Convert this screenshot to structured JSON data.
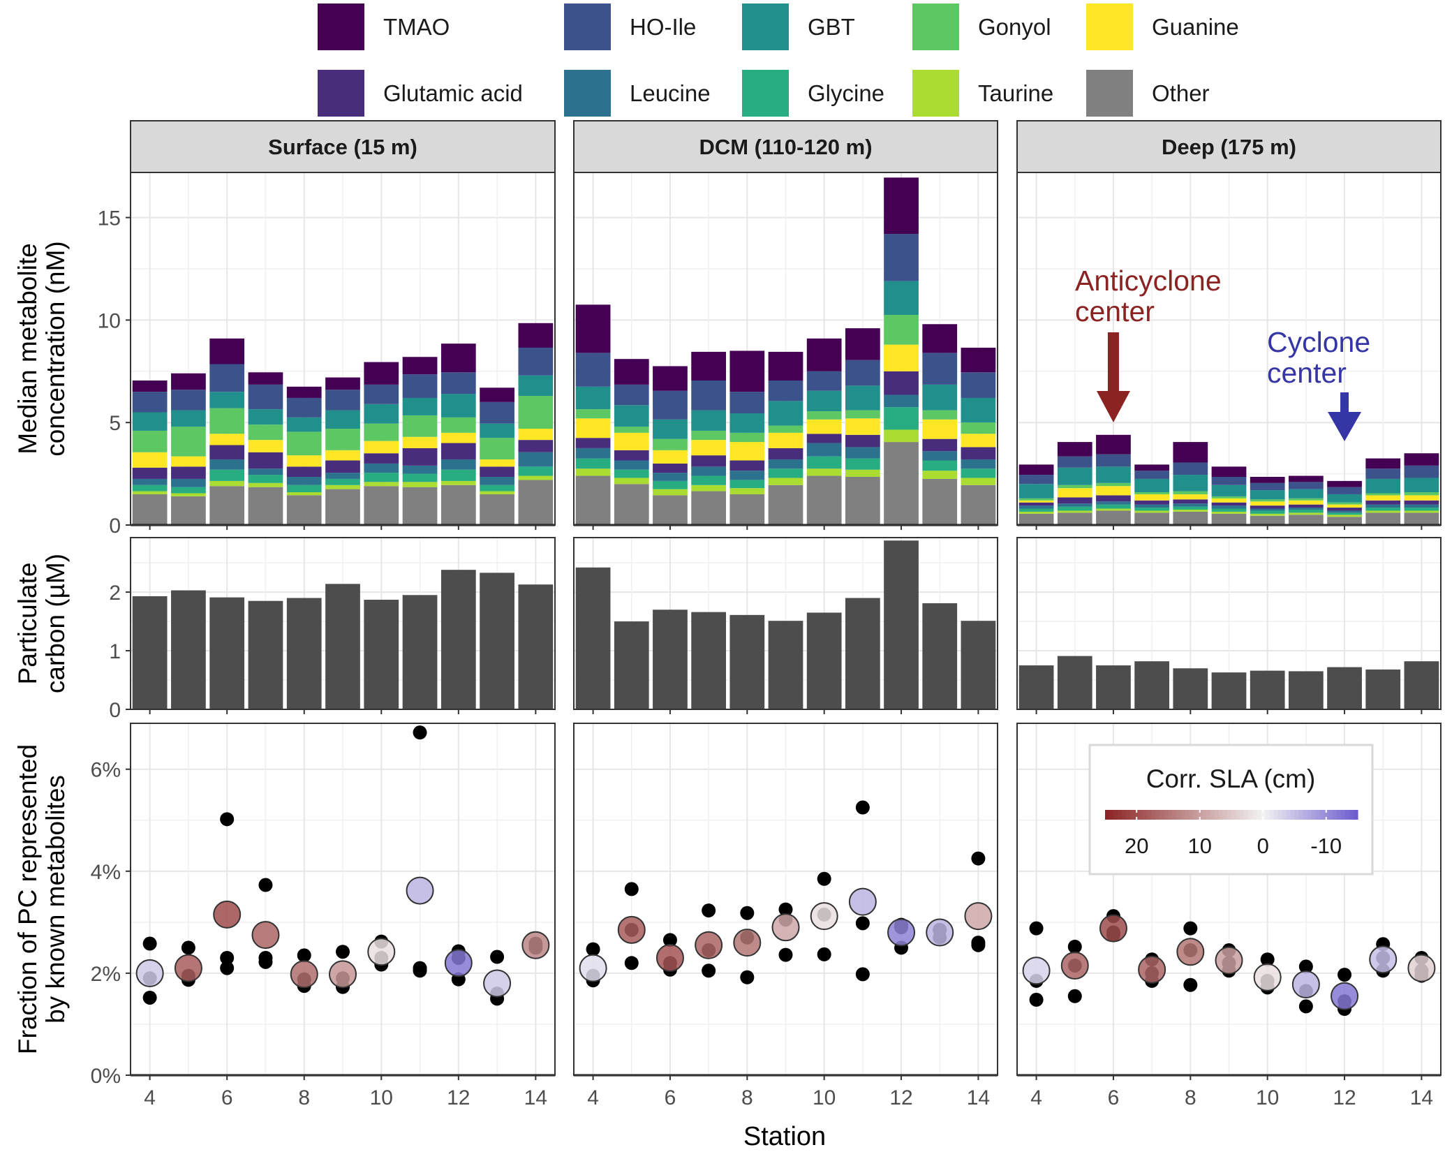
{
  "chart_data": {
    "type": "bar",
    "stations": [
      4,
      5,
      6,
      7,
      8,
      9,
      10,
      11,
      12,
      13,
      14
    ],
    "legend": {
      "position": "top",
      "items": [
        {
          "name": "TMAO",
          "color": "#440154"
        },
        {
          "name": "HO-Ile",
          "color": "#3B528B"
        },
        {
          "name": "GBT",
          "color": "#21908C"
        },
        {
          "name": "Gonyol",
          "color": "#5DC863"
        },
        {
          "name": "Guanine",
          "color": "#FDE725"
        },
        {
          "name": "Glutamic acid",
          "color": "#472D7B"
        },
        {
          "name": "Leucine",
          "color": "#2C728E"
        },
        {
          "name": "Glycine",
          "color": "#27AD81"
        },
        {
          "name": "Taurine",
          "color": "#AADC32"
        },
        {
          "name": "Other",
          "color": "#808080"
        }
      ]
    },
    "facets": [
      {
        "label": "Surface  (15 m)"
      },
      {
        "label": "DCM  (110-120 m)"
      },
      {
        "label": "Deep  (175 m)"
      }
    ],
    "stack_order": [
      "Other",
      "Taurine",
      "Glycine",
      "Leucine",
      "Glutamic acid",
      "Guanine",
      "Gonyol",
      "GBT",
      "HO-Ile",
      "TMAO"
    ],
    "panel_metabolites": {
      "ylabel": [
        "Median metabolite",
        "concentration (nM)"
      ],
      "ylim": [
        0,
        17.2
      ],
      "yticks": [
        0,
        5,
        10,
        15
      ],
      "series": {
        "Surface": {
          "Other": [
            1.5,
            1.4,
            1.9,
            1.85,
            1.45,
            1.75,
            1.9,
            1.85,
            1.95,
            1.5,
            2.2
          ],
          "Taurine": [
            0.15,
            0.15,
            0.25,
            0.2,
            0.15,
            0.2,
            0.2,
            0.25,
            0.2,
            0.15,
            0.2
          ],
          "Glycine": [
            0.3,
            0.3,
            0.55,
            0.4,
            0.35,
            0.3,
            0.45,
            0.4,
            0.55,
            0.3,
            0.45
          ],
          "Leucine": [
            0.3,
            0.4,
            0.5,
            0.3,
            0.4,
            0.3,
            0.45,
            0.4,
            0.5,
            0.4,
            0.7
          ],
          "Glutamic acid": [
            0.55,
            0.6,
            0.7,
            0.8,
            0.5,
            0.6,
            0.5,
            0.85,
            0.8,
            0.5,
            0.6
          ],
          "Guanine": [
            0.75,
            0.5,
            0.55,
            0.6,
            0.55,
            0.5,
            0.6,
            0.55,
            0.5,
            0.35,
            0.55
          ],
          "Gonyol": [
            1.05,
            1.45,
            1.25,
            0.75,
            1.15,
            1.05,
            0.85,
            1.05,
            0.75,
            1.05,
            1.6
          ],
          "GBT": [
            0.9,
            0.8,
            0.8,
            0.75,
            0.7,
            0.9,
            0.95,
            0.85,
            1.15,
            0.7,
            1.0
          ],
          "HO-Ile": [
            1.0,
            1.0,
            1.35,
            1.2,
            0.95,
            1.0,
            0.95,
            1.15,
            1.05,
            1.05,
            1.35
          ],
          "TMAO": [
            0.55,
            0.8,
            1.25,
            0.6,
            0.55,
            0.6,
            1.1,
            0.85,
            1.4,
            0.7,
            1.2
          ]
        },
        "DCM": {
          "Other": [
            2.4,
            2.0,
            1.45,
            1.65,
            1.5,
            1.95,
            2.4,
            2.35,
            4.05,
            2.25,
            1.95
          ],
          "Taurine": [
            0.35,
            0.3,
            0.3,
            0.3,
            0.3,
            0.35,
            0.35,
            0.35,
            0.6,
            0.4,
            0.35
          ],
          "Glycine": [
            0.5,
            0.4,
            0.4,
            0.45,
            0.4,
            0.45,
            0.6,
            0.55,
            1.1,
            0.5,
            0.45
          ],
          "Leucine": [
            0.5,
            0.45,
            0.4,
            0.45,
            0.45,
            0.45,
            0.65,
            0.55,
            0.6,
            0.45,
            0.45
          ],
          "Glutamic acid": [
            0.5,
            0.5,
            0.45,
            0.55,
            0.5,
            0.55,
            0.45,
            0.6,
            1.15,
            0.6,
            0.6
          ],
          "Guanine": [
            0.95,
            0.85,
            0.65,
            0.75,
            0.9,
            0.75,
            0.7,
            0.8,
            1.3,
            0.95,
            0.65
          ],
          "Gonyol": [
            0.45,
            0.3,
            0.55,
            0.45,
            0.45,
            0.35,
            0.4,
            0.4,
            1.45,
            0.45,
            0.55
          ],
          "GBT": [
            1.1,
            1.05,
            0.95,
            1.0,
            0.95,
            1.2,
            1.0,
            1.2,
            1.65,
            1.25,
            1.2
          ],
          "HO-Ile": [
            1.65,
            1.0,
            1.4,
            1.45,
            1.05,
            1.0,
            0.95,
            1.25,
            2.3,
            1.55,
            1.25
          ],
          "TMAO": [
            2.35,
            1.25,
            1.2,
            1.4,
            2.0,
            1.4,
            1.6,
            1.55,
            2.75,
            1.4,
            1.2
          ]
        },
        "Deep": {
          "Other": [
            0.55,
            0.6,
            0.7,
            0.6,
            0.65,
            0.55,
            0.45,
            0.5,
            0.4,
            0.6,
            0.6
          ],
          "Taurine": [
            0.1,
            0.1,
            0.1,
            0.1,
            0.1,
            0.1,
            0.1,
            0.1,
            0.1,
            0.1,
            0.1
          ],
          "Glycine": [
            0.15,
            0.2,
            0.2,
            0.15,
            0.15,
            0.15,
            0.15,
            0.15,
            0.1,
            0.15,
            0.15
          ],
          "Leucine": [
            0.15,
            0.15,
            0.15,
            0.15,
            0.15,
            0.15,
            0.1,
            0.1,
            0.1,
            0.15,
            0.15
          ],
          "Glutamic acid": [
            0.15,
            0.3,
            0.3,
            0.2,
            0.2,
            0.15,
            0.15,
            0.15,
            0.15,
            0.2,
            0.2
          ],
          "Guanine": [
            0.1,
            0.45,
            0.45,
            0.3,
            0.25,
            0.2,
            0.2,
            0.2,
            0.15,
            0.25,
            0.25
          ],
          "Gonyol": [
            0.1,
            0.15,
            0.15,
            0.1,
            0.15,
            0.1,
            0.1,
            0.1,
            0.1,
            0.1,
            0.15
          ],
          "GBT": [
            0.7,
            0.85,
            0.8,
            0.65,
            0.8,
            0.55,
            0.45,
            0.45,
            0.4,
            0.7,
            0.7
          ],
          "HO-Ile": [
            0.45,
            0.55,
            0.6,
            0.4,
            0.6,
            0.4,
            0.35,
            0.35,
            0.35,
            0.5,
            0.6
          ],
          "TMAO": [
            0.5,
            0.7,
            0.95,
            0.3,
            1.0,
            0.5,
            0.3,
            0.3,
            0.3,
            0.5,
            0.6
          ]
        }
      },
      "annotations": [
        {
          "facet": "Deep",
          "text": [
            "Anticyclone",
            "center"
          ],
          "station": 6,
          "color": "#8B2323"
        },
        {
          "facet": "Deep",
          "text": [
            "Cyclone",
            "center"
          ],
          "station": 12,
          "color": "#3535A6"
        }
      ]
    },
    "panel_pc": {
      "ylabel": [
        "Particulate",
        "carbon (µM)"
      ],
      "ylim": [
        0,
        2.93
      ],
      "yticks": [
        0,
        1,
        2
      ],
      "color": "#4D4D4D",
      "series": {
        "Surface": [
          1.93,
          2.03,
          1.91,
          1.85,
          1.9,
          2.14,
          1.87,
          1.95,
          2.38,
          2.33,
          2.13
        ],
        "DCM": [
          2.42,
          1.5,
          1.7,
          1.66,
          1.61,
          1.51,
          1.65,
          1.9,
          2.88,
          1.81,
          1.51
        ],
        "Deep": [
          0.75,
          0.91,
          0.75,
          0.82,
          0.7,
          0.63,
          0.66,
          0.65,
          0.72,
          0.68,
          0.82
        ]
      }
    },
    "panel_fraction": {
      "ylabel": [
        "Fraction of PC represented",
        "by known metabolites"
      ],
      "ylim": [
        0,
        6.9
      ],
      "yticks": [
        0,
        2,
        4,
        6
      ],
      "ytick_labels": [
        "0%",
        "2%",
        "4%",
        "6%"
      ],
      "colorbar": {
        "title": "Corr. SLA (cm)",
        "ticks": [
          20,
          10,
          0,
          -10
        ],
        "range": [
          25,
          -15
        ],
        "color_high": "#8B2323",
        "color_mid": "#F2F2F2",
        "color_low": "#6A5ACD"
      },
      "series": {
        "Surface": {
          "median": [
            2.0,
            2.1,
            3.15,
            2.75,
            1.98,
            1.98,
            2.42,
            3.62,
            2.2,
            1.8,
            2.55
          ],
          "sla": [
            -4,
            18,
            20,
            17,
            16,
            11,
            2,
            -6,
            -12,
            -4,
            13
          ],
          "reps": [
            [
              1.52,
              2.58,
              1.9
            ],
            [
              1.87,
              2.5,
              1.95
            ],
            [
              2.1,
              2.3,
              5.02
            ],
            [
              2.22,
              2.3,
              3.73
            ],
            [
              1.75,
              2.35,
              1.88
            ],
            [
              1.73,
              2.42,
              1.9
            ],
            [
              2.17,
              2.62,
              2.3
            ],
            [
              2.05,
              2.1,
              6.72
            ],
            [
              1.88,
              2.43,
              2.3
            ],
            [
              1.5,
              2.32,
              1.6
            ],
            [
              2.5,
              2.58,
              2.53
            ]
          ]
        },
        "DCM": {
          "median": [
            2.1,
            2.85,
            2.3,
            2.55,
            2.6,
            2.9,
            3.12,
            3.4,
            2.8,
            2.8,
            3.12
          ],
          "sla": [
            -2,
            18,
            19,
            17,
            15,
            9,
            2,
            -6,
            -11,
            -6,
            9
          ],
          "reps": [
            [
              1.86,
              2.47,
              1.95
            ],
            [
              2.2,
              3.65,
              2.85
            ],
            [
              2.07,
              2.65,
              2.2
            ],
            [
              2.05,
              3.23,
              2.45
            ],
            [
              1.92,
              3.18,
              2.7
            ],
            [
              2.36,
              3.25,
              3.05
            ],
            [
              2.37,
              3.85,
              3.15
            ],
            [
              1.98,
              2.98,
              5.25
            ],
            [
              2.5,
              2.95,
              2.9
            ],
            [
              2.7,
              2.85,
              2.85
            ],
            [
              2.55,
              4.25,
              2.6
            ]
          ]
        },
        "Deep": {
          "median": [
            2.05,
            2.15,
            2.88,
            2.07,
            2.42,
            2.25,
            1.92,
            1.78,
            1.55,
            2.27,
            2.1
          ],
          "sla": [
            -3,
            17,
            20,
            17,
            15,
            10,
            2,
            -6,
            -12,
            -5,
            4
          ],
          "reps": [
            [
              1.48,
              2.88,
              1.85
            ],
            [
              1.55,
              2.52,
              2.15
            ],
            [
              2.75,
              3.12,
              2.8
            ],
            [
              1.85,
              2.27,
              2.0
            ],
            [
              1.77,
              2.88,
              2.45
            ],
            [
              2.05,
              2.45,
              2.2
            ],
            [
              1.72,
              2.27,
              1.85
            ],
            [
              1.35,
              2.13,
              1.65
            ],
            [
              1.3,
              1.97,
              1.45
            ],
            [
              2.05,
              2.57,
              2.3
            ],
            [
              1.95,
              2.3,
              2.05
            ]
          ]
        }
      }
    },
    "xlabel": "Station",
    "xticks": [
      4,
      6,
      8,
      10,
      12,
      14
    ]
  }
}
